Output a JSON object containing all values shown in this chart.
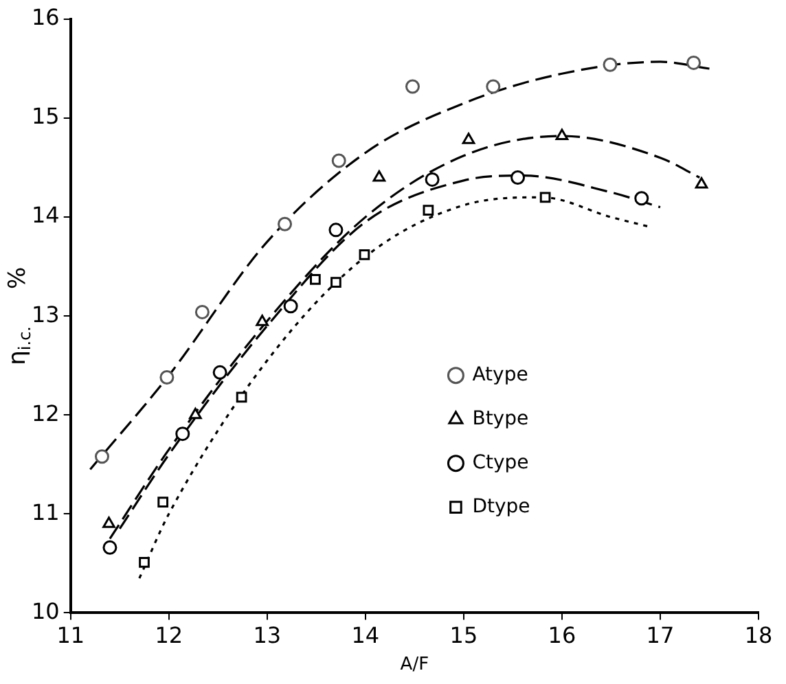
{
  "chart_data": {
    "type": "scatter",
    "xlabel": "A/F",
    "ylabel": "η$_{i.c.}$     %",
    "xlim": [
      11,
      18
    ],
    "xticks": [
      11,
      12,
      13,
      14,
      15,
      16,
      17,
      18
    ],
    "ylim": [
      10,
      16
    ],
    "yticks": [
      10,
      11,
      12,
      13,
      14,
      15,
      16
    ],
    "grid": false,
    "legend": "bottom right",
    "series": [
      {
        "name": "Atype",
        "marker": "circle",
        "color": "#555555",
        "x": [
          11.32,
          11.98,
          12.34,
          13.18,
          13.73,
          14.48,
          15.3,
          16.49,
          17.34
        ],
        "values": [
          11.58,
          12.38,
          13.04,
          13.93,
          14.57,
          15.32,
          15.32,
          15.54,
          15.56
        ]
      },
      {
        "name": "Btype",
        "marker": "triangle",
        "color": "#000000",
        "x": [
          11.39,
          12.27,
          12.95,
          14.14,
          15.05,
          16.0,
          17.42
        ],
        "values": [
          10.9,
          12.0,
          12.94,
          14.4,
          14.78,
          14.82,
          14.33
        ]
      },
      {
        "name": "Ctype",
        "marker": "circle",
        "color": "#000000",
        "x": [
          11.4,
          12.14,
          12.52,
          13.24,
          13.7,
          14.68,
          15.55,
          16.81
        ],
        "values": [
          10.66,
          11.81,
          12.43,
          13.1,
          13.87,
          14.38,
          14.4,
          14.19
        ]
      },
      {
        "name": "Dtype",
        "marker": "square",
        "color": "#000000",
        "x": [
          11.75,
          11.94,
          12.74,
          13.49,
          13.7,
          13.99,
          14.64,
          15.83
        ],
        "values": [
          10.51,
          11.12,
          12.18,
          13.37,
          13.34,
          13.62,
          14.07,
          14.2
        ]
      },
      {
        "type": "line",
        "line_style": "dashed",
        "color": "#000000",
        "x": [
          11.2,
          12,
          13,
          14,
          15,
          16,
          17,
          17.5
        ],
        "values": [
          11.45,
          12.4,
          13.75,
          14.65,
          15.15,
          15.45,
          15.57,
          15.5
        ]
      },
      {
        "type": "line",
        "line_style": "dashed",
        "color": "#000000",
        "x": [
          11.4,
          12,
          13,
          14,
          15,
          16,
          17,
          17.4
        ],
        "values": [
          10.75,
          11.65,
          12.95,
          14.0,
          14.62,
          14.82,
          14.6,
          14.4
        ]
      },
      {
        "type": "line",
        "line_style": "dashed",
        "color": "#000000",
        "x": [
          11.5,
          12,
          13,
          14,
          15,
          15.6,
          16.5,
          17
        ],
        "values": [
          10.85,
          11.6,
          12.9,
          13.95,
          14.37,
          14.42,
          14.25,
          14.1
        ]
      },
      {
        "type": "line",
        "line_style": "dotted",
        "color": "#000000",
        "x": [
          11.7,
          12,
          13,
          14,
          15,
          15.8,
          16.5,
          16.9
        ],
        "values": [
          10.35,
          11.0,
          12.55,
          13.6,
          14.12,
          14.2,
          14.0,
          13.9
        ]
      }
    ]
  }
}
